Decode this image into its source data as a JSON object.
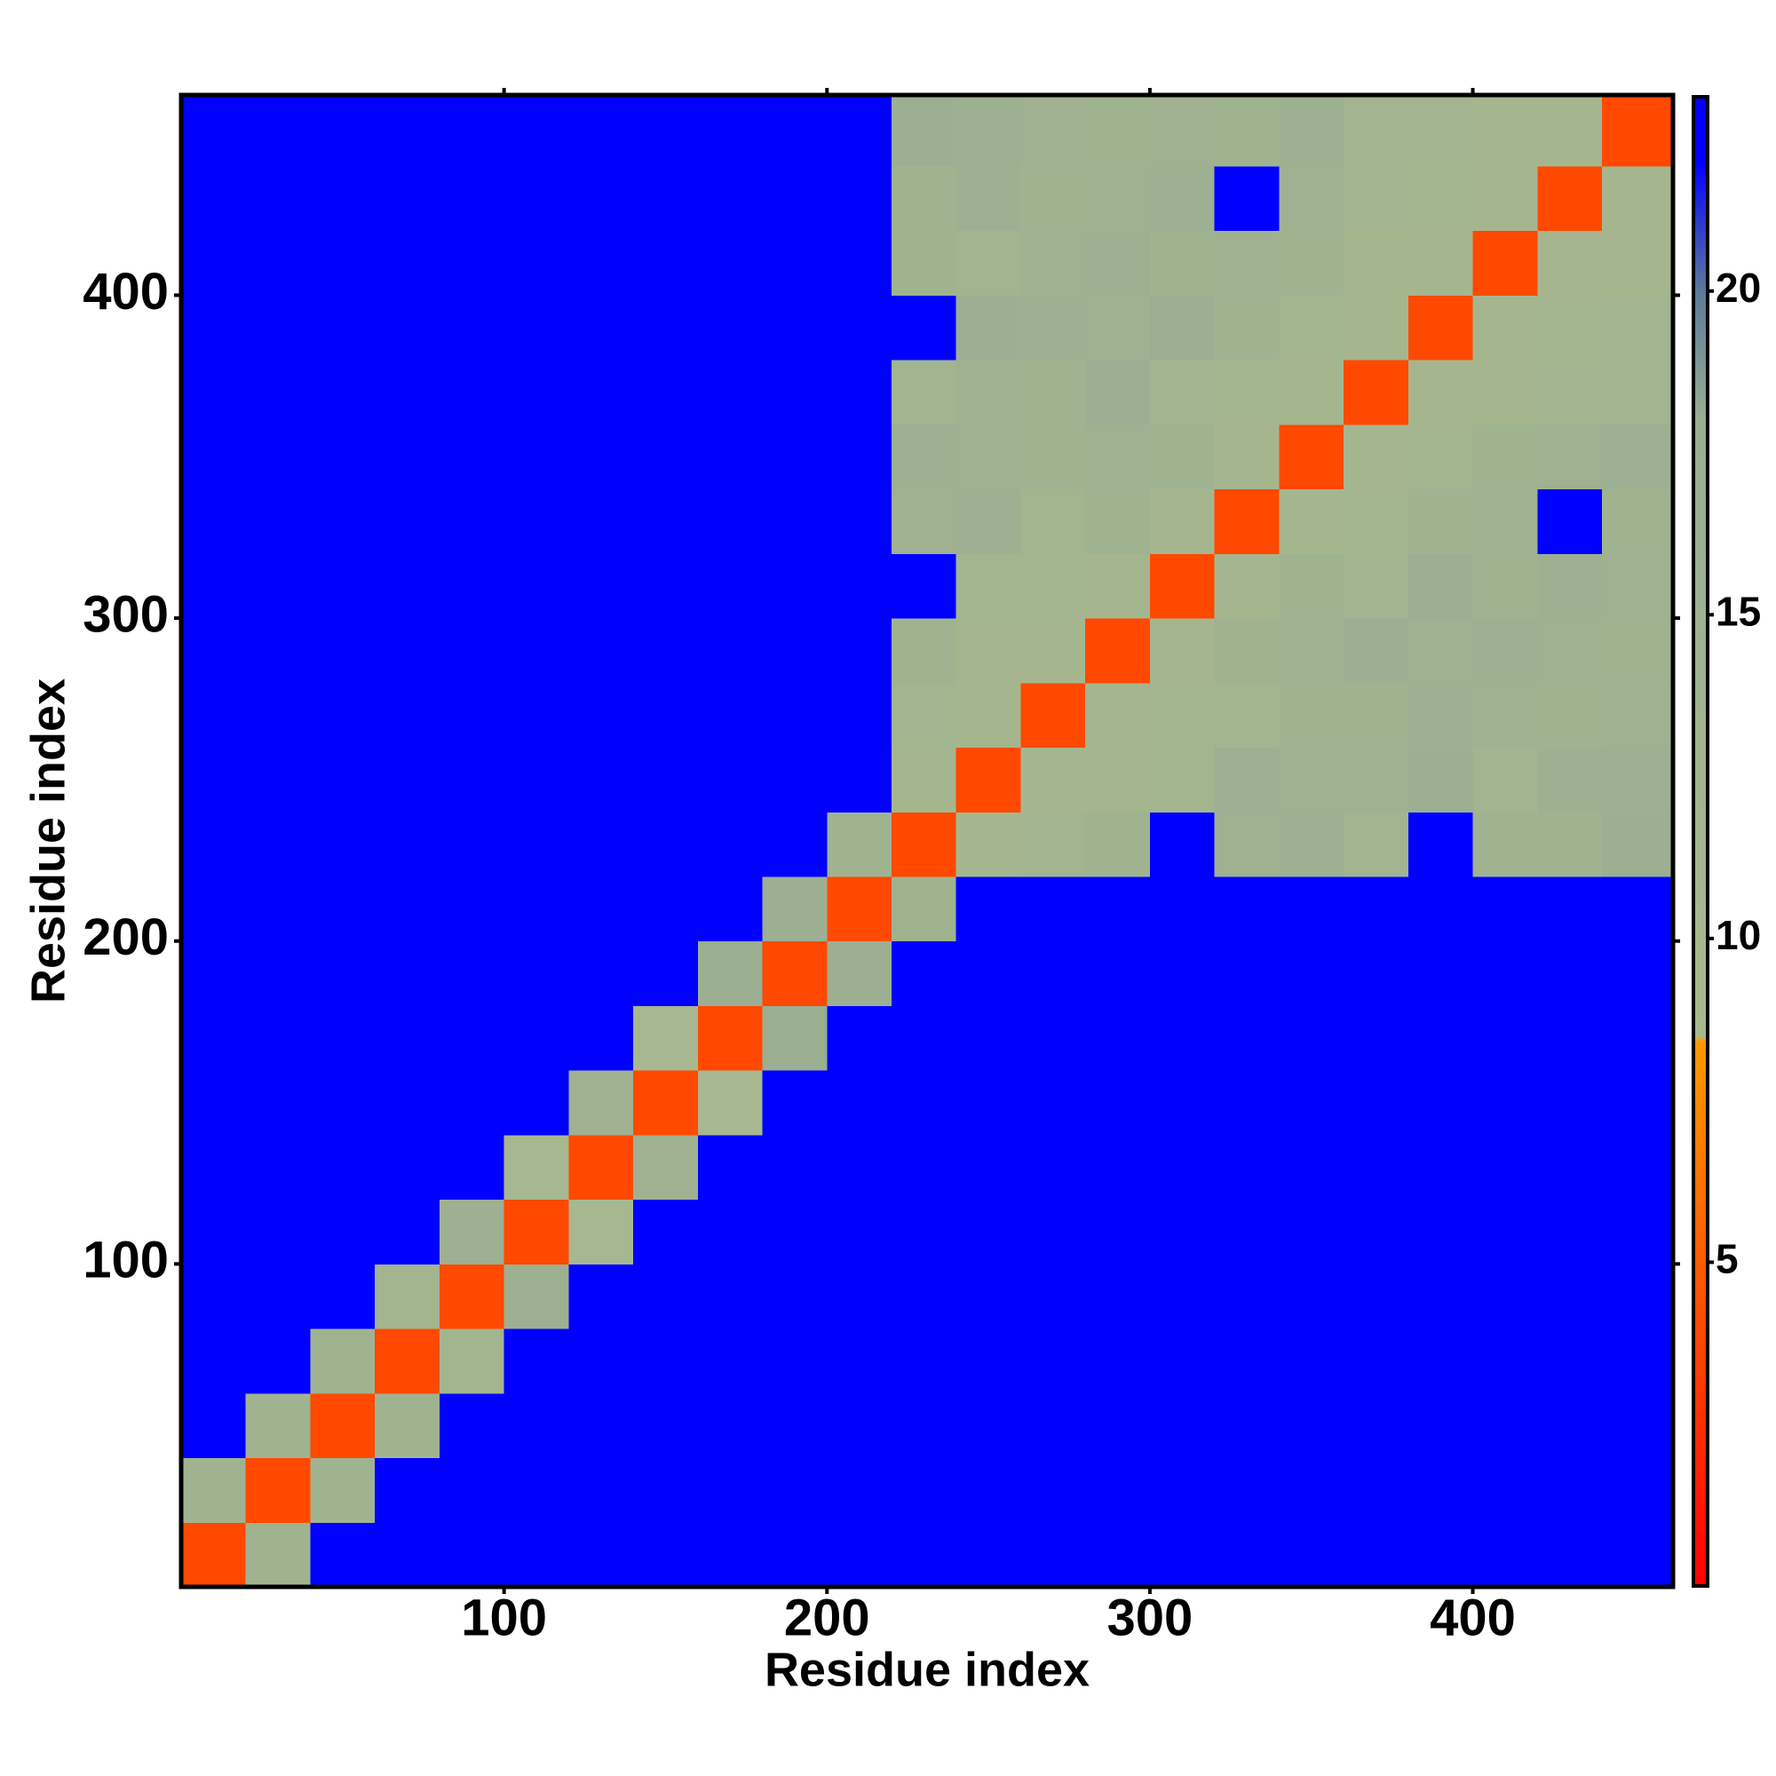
{
  "chart_data": {
    "type": "heatmap",
    "x_label": "Residue index",
    "y_label": "Residue index",
    "xlim": [
      0,
      462
    ],
    "ylim": [
      0,
      462
    ],
    "xticks": [
      100,
      200,
      300,
      400
    ],
    "yticks": [
      100,
      200,
      300,
      400
    ],
    "xbins": [
      0,
      20,
      40,
      60,
      80,
      100,
      120,
      140,
      160,
      180,
      200,
      220,
      240,
      260,
      280,
      300,
      320,
      340,
      360,
      380,
      400,
      420,
      440,
      462
    ],
    "ybins": [
      0,
      20,
      40,
      60,
      80,
      100,
      120,
      140,
      160,
      180,
      200,
      220,
      240,
      260,
      280,
      300,
      320,
      340,
      360,
      380,
      400,
      420,
      440,
      462
    ],
    "clim": [
      0,
      23
    ],
    "cticks": [
      5,
      10,
      15,
      20
    ],
    "colorscale": [
      [
        0,
        "#ff0000"
      ],
      [
        8.4,
        "#ff9900"
      ],
      [
        8.5,
        "#a9b98e"
      ],
      [
        18,
        "#9aae92"
      ],
      [
        20,
        "#5a7a9a"
      ],
      [
        22,
        "#0000ff"
      ],
      [
        23,
        "#0000ff"
      ]
    ],
    "z": [
      [
        4,
        14,
        23,
        23,
        23,
        23,
        23,
        23,
        23,
        23,
        23,
        23,
        23,
        23,
        23,
        23,
        23,
        23,
        23,
        23,
        23,
        23,
        23
      ],
      [
        14,
        4,
        14,
        23,
        23,
        23,
        23,
        23,
        23,
        23,
        23,
        23,
        23,
        23,
        23,
        23,
        23,
        23,
        23,
        23,
        23,
        23,
        23
      ],
      [
        23,
        14,
        4,
        14,
        23,
        23,
        23,
        23,
        23,
        23,
        23,
        23,
        23,
        23,
        23,
        23,
        23,
        23,
        23,
        23,
        23,
        23,
        23
      ],
      [
        23,
        23,
        14,
        4,
        12,
        23,
        23,
        23,
        23,
        23,
        23,
        23,
        23,
        23,
        23,
        23,
        23,
        23,
        23,
        23,
        23,
        23,
        23
      ],
      [
        23,
        23,
        23,
        12,
        4,
        16,
        23,
        23,
        23,
        23,
        23,
        23,
        23,
        23,
        23,
        23,
        23,
        23,
        23,
        23,
        23,
        23,
        23
      ],
      [
        23,
        23,
        23,
        23,
        16,
        4,
        10,
        23,
        23,
        23,
        23,
        23,
        23,
        23,
        23,
        23,
        23,
        23,
        23,
        23,
        23,
        23,
        23
      ],
      [
        23,
        23,
        23,
        23,
        23,
        10,
        4,
        15,
        23,
        23,
        23,
        23,
        23,
        23,
        23,
        23,
        23,
        23,
        23,
        23,
        23,
        23,
        23
      ],
      [
        23,
        23,
        23,
        23,
        23,
        23,
        15,
        4,
        10,
        23,
        23,
        23,
        23,
        23,
        23,
        23,
        23,
        23,
        23,
        23,
        23,
        23,
        23
      ],
      [
        23,
        23,
        23,
        23,
        23,
        23,
        23,
        10,
        4,
        18,
        23,
        23,
        23,
        23,
        23,
        23,
        23,
        23,
        23,
        23,
        23,
        23,
        23
      ],
      [
        23,
        23,
        23,
        23,
        23,
        23,
        23,
        23,
        18,
        4,
        17,
        23,
        23,
        23,
        23,
        23,
        23,
        23,
        23,
        23,
        23,
        23,
        23
      ],
      [
        23,
        23,
        23,
        23,
        23,
        23,
        23,
        23,
        23,
        17,
        4,
        14,
        23,
        23,
        23,
        23,
        23,
        23,
        23,
        23,
        23,
        23,
        23
      ],
      [
        23,
        23,
        23,
        23,
        23,
        23,
        23,
        23,
        23,
        23,
        14,
        4,
        11,
        13,
        14,
        23,
        15,
        16,
        13,
        23,
        14,
        14,
        17
      ],
      [
        23,
        23,
        23,
        23,
        23,
        23,
        23,
        23,
        23,
        23,
        23,
        11,
        4,
        11,
        11,
        12,
        16,
        15,
        15,
        17,
        13,
        16,
        16
      ],
      [
        23,
        23,
        23,
        23,
        23,
        23,
        23,
        23,
        23,
        23,
        23,
        13,
        11,
        4,
        11,
        12,
        12,
        14,
        14,
        16,
        15,
        14,
        15
      ],
      [
        23,
        23,
        23,
        23,
        23,
        23,
        23,
        23,
        23,
        23,
        23,
        14,
        11,
        11,
        4,
        11,
        14,
        15,
        17,
        15,
        16,
        15,
        14
      ],
      [
        23,
        23,
        23,
        23,
        23,
        23,
        23,
        23,
        23,
        23,
        23,
        23,
        12,
        12,
        11,
        4,
        11,
        14,
        13,
        17,
        14,
        16,
        15
      ],
      [
        23,
        23,
        23,
        23,
        23,
        23,
        23,
        23,
        23,
        23,
        23,
        15,
        16,
        12,
        14,
        11,
        4,
        11,
        12,
        14,
        15,
        23,
        14
      ],
      [
        23,
        23,
        23,
        23,
        23,
        23,
        23,
        23,
        23,
        23,
        23,
        16,
        15,
        14,
        15,
        14,
        11,
        4,
        11,
        12,
        14,
        15,
        16
      ],
      [
        23,
        23,
        23,
        23,
        23,
        23,
        23,
        23,
        23,
        23,
        23,
        13,
        15,
        14,
        17,
        13,
        12,
        11,
        4,
        11,
        11,
        13,
        13
      ],
      [
        23,
        23,
        23,
        23,
        23,
        23,
        23,
        23,
        23,
        23,
        23,
        23,
        17,
        16,
        15,
        17,
        14,
        12,
        11,
        4,
        11,
        12,
        13
      ],
      [
        23,
        23,
        23,
        23,
        23,
        23,
        23,
        23,
        23,
        23,
        23,
        14,
        13,
        15,
        16,
        14,
        15,
        14,
        11,
        11,
        4,
        11,
        11
      ],
      [
        23,
        23,
        23,
        23,
        23,
        23,
        23,
        23,
        23,
        23,
        23,
        14,
        16,
        14,
        15,
        16,
        23,
        15,
        13,
        12,
        11,
        4,
        11
      ],
      [
        23,
        23,
        23,
        23,
        23,
        23,
        23,
        23,
        23,
        23,
        23,
        17,
        16,
        15,
        14,
        15,
        14,
        16,
        13,
        13,
        11,
        11,
        4
      ]
    ]
  }
}
